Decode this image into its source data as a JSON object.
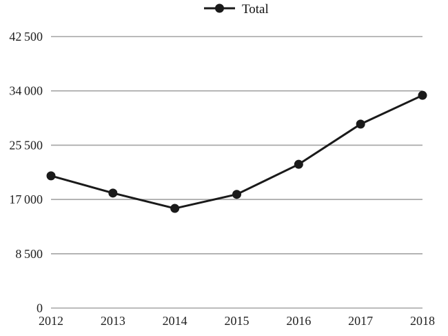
{
  "legend": {
    "label": "Total"
  },
  "colors": {
    "line": "#1a1a1a",
    "grid": "#a3a3a3",
    "text": "#1f1f1f",
    "background": "#ffffff"
  },
  "chart_data": {
    "type": "line",
    "title": "",
    "xlabel": "",
    "ylabel": "",
    "categories": [
      "2012",
      "2013",
      "2014",
      "2015",
      "2016",
      "2017",
      "2018"
    ],
    "series": [
      {
        "name": "Total",
        "values": [
          20700,
          18000,
          15600,
          17800,
          22500,
          28800,
          33300
        ]
      }
    ],
    "ylim": [
      0,
      42500
    ],
    "y_ticks": [
      0,
      8500,
      17000,
      25500,
      34000,
      42500
    ],
    "y_tick_labels": [
      "0",
      "8 500",
      "17 000",
      "25 500",
      "34 000",
      "42 500"
    ],
    "grid": "horizontal",
    "legend_position": "top-center",
    "marker": "circle"
  }
}
